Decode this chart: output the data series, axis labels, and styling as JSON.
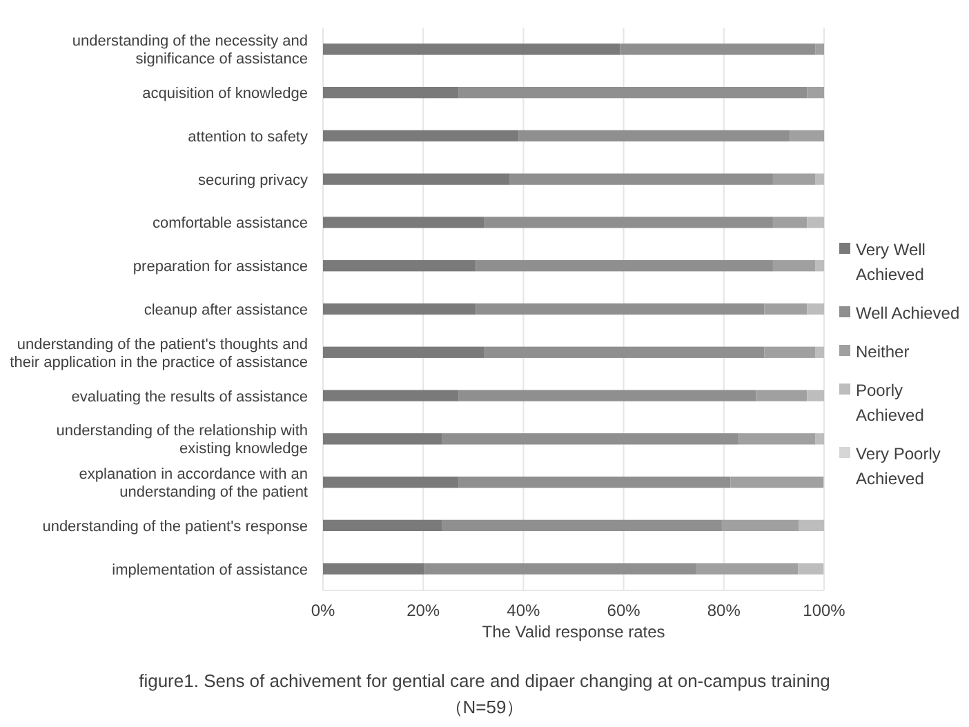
{
  "chart_data": {
    "type": "bar",
    "orientation": "horizontal",
    "stacked": true,
    "title": "figure1. Sens of achivement for gential care and dipaer changing at on-campus training",
    "subtitle": "（N=59）",
    "xlabel": "The Valid response rates",
    "categories": [
      "understanding of the necessity and significance of assistance",
      "acquisition of knowledge",
      "attention to safety",
      "securing privacy",
      "comfortable assistance",
      "preparation for assistance",
      "cleanup after assistance",
      "understanding of the patient's thoughts and their application in the practice of assistance",
      "evaluating the results of assistance",
      "understanding of the relationship with existing knowledge",
      "explanation in accordance with an understanding of the patient",
      "understanding of the patient's response",
      "implementation of assistance"
    ],
    "series": [
      {
        "name": "Very Well Achieved",
        "color": "#7a7a7a",
        "values": [
          59.3,
          27.1,
          39.0,
          37.3,
          32.2,
          30.5,
          30.5,
          32.2,
          27.1,
          23.7,
          27.1,
          23.7,
          20.3
        ]
      },
      {
        "name": "Well Achieved",
        "color": "#8f8f8f",
        "values": [
          39.0,
          69.5,
          54.2,
          52.5,
          57.6,
          59.3,
          57.6,
          55.9,
          59.3,
          59.3,
          54.2,
          55.9,
          54.2
        ]
      },
      {
        "name": "Neither",
        "color": "#a0a0a0",
        "values": [
          1.7,
          3.4,
          6.8,
          8.5,
          6.8,
          8.5,
          8.5,
          10.2,
          10.2,
          15.3,
          18.6,
          15.3,
          20.3
        ]
      },
      {
        "name": "Poorly Achieved",
        "color": "#bdbdbd",
        "values": [
          0,
          0,
          0,
          1.7,
          3.4,
          1.7,
          3.4,
          1.7,
          3.4,
          1.7,
          0,
          5.1,
          5.1
        ]
      },
      {
        "name": "Very Poorly Achieved",
        "color": "#d6d6d6",
        "values": [
          0,
          0,
          0,
          0,
          0,
          0,
          0,
          0,
          0,
          0,
          0,
          0,
          0
        ]
      }
    ],
    "xlim": [
      0,
      100
    ],
    "xticks": [
      {
        "value": 0,
        "label": "0%"
      },
      {
        "value": 20,
        "label": "20%"
      },
      {
        "value": 40,
        "label": "40%"
      },
      {
        "value": 60,
        "label": "60%"
      },
      {
        "value": 80,
        "label": "80%"
      },
      {
        "value": 100,
        "label": "100%"
      }
    ],
    "grid": "x",
    "legend": "right"
  }
}
